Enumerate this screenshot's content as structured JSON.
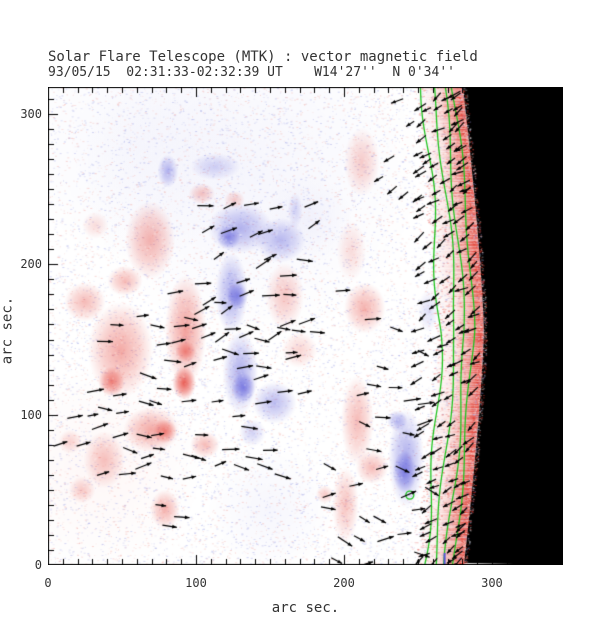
{
  "header": {
    "title": "Solar Flare Telescope (MTK) : vector magnetic field",
    "subtitle": "93/05/15  02:31:33-02:32:39 UT    W14'27''  N 0'34''"
  },
  "axes": {
    "x": {
      "label": "arc sec.",
      "ticks": [
        0,
        100,
        200,
        300
      ],
      "range": [
        0,
        348
      ],
      "minor_step": 10
    },
    "y": {
      "label": "arc sec.",
      "ticks": [
        0,
        100,
        200,
        300
      ],
      "range": [
        0,
        318
      ],
      "minor_step": 10
    }
  },
  "chart_data": {
    "type": "heatmap",
    "title": "Solar Flare Telescope (MTK) : vector magnetic field",
    "instrument": "Solar Flare Telescope (MTK)",
    "quantity": "vector magnetic field",
    "date": "93/05/15",
    "time_ut": "02:31:33-02:32:39 UT",
    "pointing": "W14'27''  N 0'34''",
    "xlabel": "arc sec.",
    "ylabel": "arc sec.",
    "x_range": [
      0,
      348
    ],
    "y_range": [
      0,
      318
    ],
    "seed": 42,
    "colors": {
      "background": "#ffffff",
      "positive_rgb": "228,55,45",
      "negative_rgb": "80,80,215",
      "limb_band_rgb": "224,54,42",
      "off_limb": "#000000",
      "contour_green": "#1ec41e",
      "speckle_red": "#f0a49e",
      "speckle_blue": "#9298e2",
      "vector_black": "#000000",
      "frame": "#000000",
      "limb_mark_blue": "#5254d4"
    },
    "blob_format": "[x_arcsec, y_arcsec, rx_arcsec, ry_arcsec, polarity(+1 red/-1 blue), intensity0to1]",
    "polarity_blobs": [
      [
        81,
        262,
        7,
        11,
        -1,
        0.5
      ],
      [
        113,
        265,
        17,
        9,
        -1,
        0.3
      ],
      [
        167,
        236,
        5,
        12,
        -1,
        0.25
      ],
      [
        130,
        224,
        22,
        17,
        -1,
        0.5
      ],
      [
        122,
        218,
        8,
        8,
        -1,
        0.7
      ],
      [
        157,
        216,
        17,
        15,
        -1,
        0.45
      ],
      [
        124,
        181,
        11,
        27,
        -1,
        0.55
      ],
      [
        128,
        179,
        7,
        9,
        -1,
        0.7
      ],
      [
        130,
        128,
        12,
        28,
        -1,
        0.55
      ],
      [
        132,
        118,
        8,
        10,
        -1,
        0.75
      ],
      [
        153,
        108,
        15,
        14,
        -1,
        0.45
      ],
      [
        138,
        88,
        9,
        9,
        -1,
        0.3
      ],
      [
        242,
        71,
        12,
        33,
        -1,
        0.55
      ],
      [
        241,
        62,
        8,
        14,
        -1,
        0.7
      ],
      [
        236,
        96,
        7,
        7,
        -1,
        0.5
      ],
      [
        257,
        169,
        7,
        14,
        -1,
        0.22
      ],
      [
        104,
        247,
        9,
        7,
        1,
        0.35
      ],
      [
        126,
        243,
        7,
        6,
        1,
        0.3
      ],
      [
        69,
        216,
        17,
        26,
        1,
        0.45
      ],
      [
        52,
        189,
        12,
        10,
        1,
        0.4
      ],
      [
        25,
        175,
        14,
        13,
        1,
        0.4
      ],
      [
        49,
        143,
        22,
        32,
        1,
        0.5
      ],
      [
        43,
        122,
        9,
        10,
        1,
        0.7
      ],
      [
        93,
        156,
        14,
        37,
        1,
        0.55
      ],
      [
        92,
        121,
        8,
        11,
        1,
        0.95
      ],
      [
        93,
        142,
        7,
        7,
        1,
        0.6
      ],
      [
        160,
        179,
        13,
        22,
        1,
        0.33
      ],
      [
        70,
        90,
        19,
        15,
        1,
        0.5
      ],
      [
        79,
        89,
        8,
        8,
        1,
        0.65
      ],
      [
        38,
        70,
        14,
        19,
        1,
        0.35
      ],
      [
        23,
        50,
        9,
        9,
        1,
        0.3
      ],
      [
        79,
        37,
        10,
        13,
        1,
        0.45
      ],
      [
        15,
        82,
        8,
        8,
        1,
        0.25
      ],
      [
        212,
        268,
        12,
        23,
        1,
        0.3
      ],
      [
        205,
        209,
        10,
        20,
        1,
        0.2
      ],
      [
        214,
        171,
        14,
        17,
        1,
        0.45
      ],
      [
        209,
        96,
        11,
        30,
        1,
        0.4
      ],
      [
        201,
        40,
        9,
        25,
        1,
        0.35
      ],
      [
        187,
        47,
        6,
        6,
        1,
        0.3
      ],
      [
        219,
        65,
        11,
        11,
        1,
        0.4
      ],
      [
        32,
        226,
        9,
        9,
        1,
        0.2
      ],
      [
        106,
        80,
        10,
        9,
        1,
        0.4
      ],
      [
        170,
        143,
        12,
        12,
        1,
        0.25
      ]
    ],
    "tint_format": "[x, y, r, polarity, alpha]",
    "tints": [
      [
        137,
        262,
        115,
        -1,
        0.05
      ],
      [
        176,
        230,
        30,
        -1,
        0.05
      ],
      [
        35,
        63,
        70,
        1,
        0.04
      ],
      [
        150,
        37,
        42,
        -1,
        0.05
      ],
      [
        60,
        280,
        80,
        -1,
        0.04
      ]
    ],
    "limb": {
      "edge_max_x": 294.5,
      "edge_center_y": 156,
      "edge_drop": 13.5,
      "band_width": 32,
      "mark_blue": {
        "x": 268,
        "y0": 0,
        "y1": 8
      }
    },
    "contours": {
      "offsets": [
        -28.5,
        -19.5,
        -13,
        -7
      ],
      "wiggle_amps": [
        3.2,
        2.0,
        2.0,
        1.8
      ],
      "phases": [
        0.5,
        2.1,
        3.7,
        5.2
      ],
      "closed_loop": {
        "x": 244.5,
        "y": 46.5,
        "r": 2.7
      }
    },
    "vector_zones": [
      {
        "x": [
          103,
          177
        ],
        "y": [
          150,
          246
        ],
        "dx": 14,
        "dy": 14,
        "prob": 0.8,
        "ang": 8,
        "spread": 30,
        "len": 10
      },
      {
        "x": [
          45,
          103
        ],
        "y": [
          169,
          223
        ],
        "dx": 15,
        "dy": 15,
        "prob": 0.4,
        "ang": 5,
        "spread": 20,
        "len": 10
      },
      {
        "x": [
          32,
          160
        ],
        "y": [
          62,
          169
        ],
        "dx": 14,
        "dy": 14,
        "prob": 0.72,
        "ang": 0,
        "spread": 25,
        "len": 10
      },
      {
        "x": [
          160,
          186
        ],
        "y": [
          75,
          169
        ],
        "dx": 14,
        "dy": 14,
        "prob": 0.5,
        "ang": 0,
        "spread": 25,
        "len": 10
      },
      {
        "x": [
          76,
          90
        ],
        "y": [
          29,
          43
        ],
        "dx": 9,
        "dy": 10,
        "prob": 0.9,
        "ang": 0,
        "spread": 10,
        "len": 9
      },
      {
        "x": [
          2,
          32
        ],
        "y": [
          66,
          96
        ],
        "dx": 14,
        "dy": 14,
        "prob": 0.3,
        "ang": 0,
        "spread": 20,
        "len": 9
      },
      {
        "x": [
          190,
          260
        ],
        "y": [
          3,
          186
        ],
        "dx": 15,
        "dy": 15,
        "prob": 0.5,
        "ang": -5,
        "spread": 30,
        "len": 10
      },
      {
        "x": [
          256,
          292
        ],
        "y": [
          2,
          316
        ],
        "dx": 9,
        "dy": 9.5,
        "prob": 0.85,
        "ang": 212,
        "spread": 18,
        "len": 8,
        "limb": true
      },
      {
        "x": [
          231,
          256
        ],
        "y": [
          249,
          312
        ],
        "dx": 12,
        "dy": 12,
        "prob": 0.45,
        "ang": 215,
        "spread": 15,
        "len": 8
      }
    ],
    "noise": {
      "speckle": 14000,
      "white_mottle": 4500,
      "band_speckle": 2600,
      "edge_speckle": 1400
    }
  }
}
